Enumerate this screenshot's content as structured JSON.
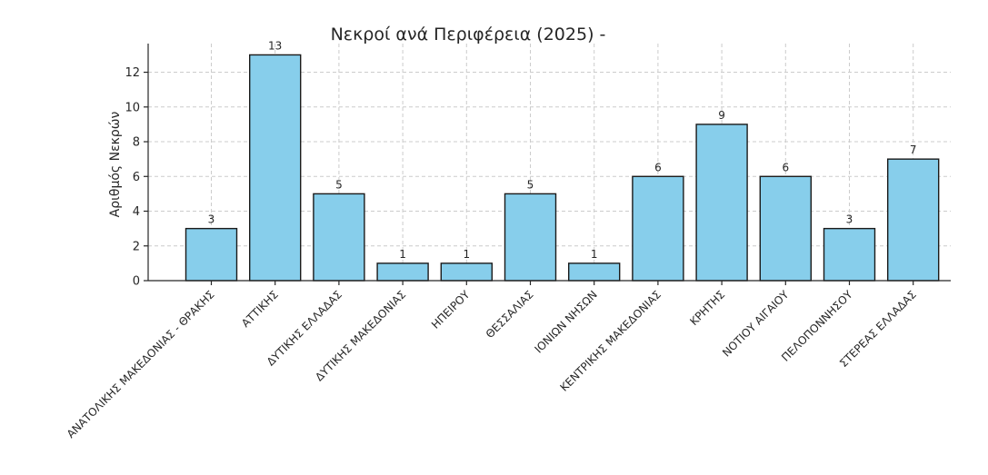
{
  "chart_data": {
    "type": "bar",
    "title": "Νεκροί ανά Περιφέρεια (2025) -",
    "xlabel": "",
    "ylabel": "Αριθμός Νεκρών",
    "categories": [
      "ΑΝΑΤΟΛΙΚΗΣ ΜΑΚΕΔΟΝΙΑΣ - ΘΡΑΚΗΣ",
      "ΑΤΤΙΚΗΣ",
      "ΔΥΤΙΚΗΣ ΕΛΛΑΔΑΣ",
      "ΔΥΤΙΚΗΣ ΜΑΚΕΔΟΝΙΑΣ",
      "ΗΠΕΙΡΟΥ",
      "ΘΕΣΣΑΛΙΑΣ",
      "ΙΟΝΙΩΝ ΝΗΣΩΝ",
      "ΚΕΝΤΡΙΚΗΣ ΜΑΚΕΔΟΝΙΑΣ",
      "ΚΡΗΤΗΣ",
      "ΝΟΤΙΟΥ ΑΙΓΑΙΟΥ",
      "ΠΕΛΟΠΟΝΝΗΣΟΥ",
      "ΣΤΕΡΕΑΣ ΕΛΛΑΔΑΣ"
    ],
    "values": [
      3,
      13,
      5,
      1,
      1,
      5,
      1,
      6,
      9,
      6,
      3,
      7
    ],
    "ylim": [
      0,
      13.65
    ],
    "yticks": [
      0,
      2,
      4,
      6,
      8,
      10,
      12
    ],
    "grid": true,
    "bar_color": "#87CEEB",
    "edge_color": "#1a1a1a"
  }
}
